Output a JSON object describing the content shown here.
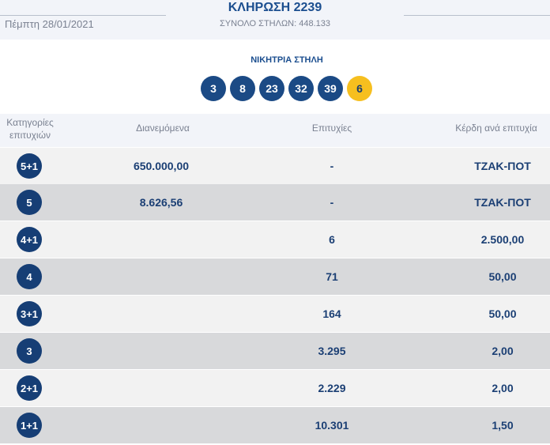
{
  "header": {
    "date": "Πέμπτη 28/01/2021",
    "title": "ΚΛΗΡΩΣΗ 2239",
    "total": "ΣΥΝΟΛΟ ΣΤΗΛΩΝ: 448.133"
  },
  "winning": {
    "label": "ΝΙΚΗΤΡΙΑ ΣΤΗΛΗ",
    "numbers": [
      "3",
      "8",
      "23",
      "32",
      "39"
    ],
    "joker": "6"
  },
  "table": {
    "headers": {
      "category_line1": "Κατηγορίες",
      "category_line2": "επιτυχιών",
      "distributed": "Διανεμόμενα",
      "successes": "Επιτυχίες",
      "winnings": "Κέρδη ανά επιτυχία"
    },
    "rows": [
      {
        "category": "5+1",
        "distributed": "650.000,00",
        "successes": "-",
        "winnings": "ΤΖΑΚ-ΠΟΤ"
      },
      {
        "category": "5",
        "distributed": "8.626,56",
        "successes": "-",
        "winnings": "ΤΖΑΚ-ΠΟΤ"
      },
      {
        "category": "4+1",
        "distributed": "",
        "successes": "6",
        "winnings": "2.500,00"
      },
      {
        "category": "4",
        "distributed": "",
        "successes": "71",
        "winnings": "50,00"
      },
      {
        "category": "3+1",
        "distributed": "",
        "successes": "164",
        "winnings": "50,00"
      },
      {
        "category": "3",
        "distributed": "",
        "successes": "3.295",
        "winnings": "2,00"
      },
      {
        "category": "2+1",
        "distributed": "",
        "successes": "2.229",
        "winnings": "2,00"
      },
      {
        "category": "1+1",
        "distributed": "",
        "successes": "10.301",
        "winnings": "1,50"
      }
    ]
  },
  "colors": {
    "brand_blue": "#1b4a85",
    "joker_yellow": "#f6bf1f",
    "row_light": "#f2f2f2",
    "row_dark": "#d8d9db"
  }
}
